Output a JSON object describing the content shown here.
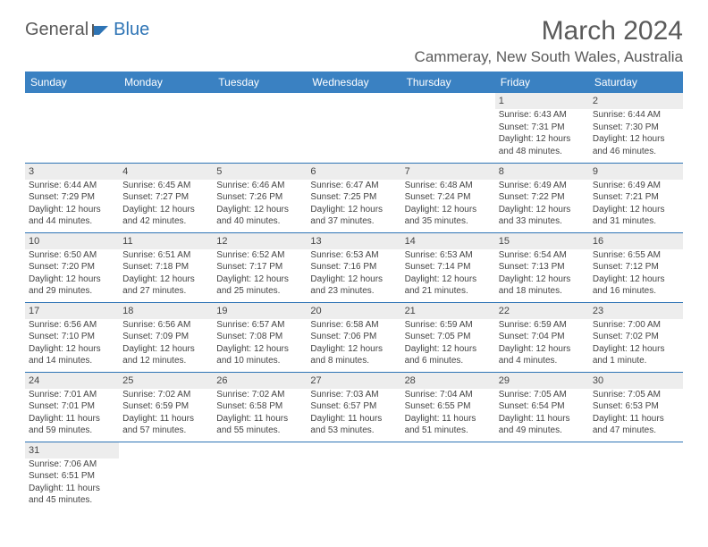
{
  "logo": {
    "general": "General",
    "blue": "Blue"
  },
  "title": "March 2024",
  "location": "Cammeray, New South Wales, Australia",
  "columns": [
    "Sunday",
    "Monday",
    "Tuesday",
    "Wednesday",
    "Thursday",
    "Friday",
    "Saturday"
  ],
  "colors": {
    "header_bg": "#3a81c2",
    "header_text": "#ffffff",
    "row_border": "#2e74b5",
    "shaded_bg": "#ededed",
    "body_text": "#444444"
  },
  "weeks": [
    [
      null,
      null,
      null,
      null,
      null,
      {
        "n": "1",
        "sr": "Sunrise: 6:43 AM",
        "ss": "Sunset: 7:31 PM",
        "d1": "Daylight: 12 hours",
        "d2": "and 48 minutes."
      },
      {
        "n": "2",
        "sr": "Sunrise: 6:44 AM",
        "ss": "Sunset: 7:30 PM",
        "d1": "Daylight: 12 hours",
        "d2": "and 46 minutes."
      }
    ],
    [
      {
        "n": "3",
        "sr": "Sunrise: 6:44 AM",
        "ss": "Sunset: 7:29 PM",
        "d1": "Daylight: 12 hours",
        "d2": "and 44 minutes."
      },
      {
        "n": "4",
        "sr": "Sunrise: 6:45 AM",
        "ss": "Sunset: 7:27 PM",
        "d1": "Daylight: 12 hours",
        "d2": "and 42 minutes."
      },
      {
        "n": "5",
        "sr": "Sunrise: 6:46 AM",
        "ss": "Sunset: 7:26 PM",
        "d1": "Daylight: 12 hours",
        "d2": "and 40 minutes."
      },
      {
        "n": "6",
        "sr": "Sunrise: 6:47 AM",
        "ss": "Sunset: 7:25 PM",
        "d1": "Daylight: 12 hours",
        "d2": "and 37 minutes."
      },
      {
        "n": "7",
        "sr": "Sunrise: 6:48 AM",
        "ss": "Sunset: 7:24 PM",
        "d1": "Daylight: 12 hours",
        "d2": "and 35 minutes."
      },
      {
        "n": "8",
        "sr": "Sunrise: 6:49 AM",
        "ss": "Sunset: 7:22 PM",
        "d1": "Daylight: 12 hours",
        "d2": "and 33 minutes."
      },
      {
        "n": "9",
        "sr": "Sunrise: 6:49 AM",
        "ss": "Sunset: 7:21 PM",
        "d1": "Daylight: 12 hours",
        "d2": "and 31 minutes."
      }
    ],
    [
      {
        "n": "10",
        "sr": "Sunrise: 6:50 AM",
        "ss": "Sunset: 7:20 PM",
        "d1": "Daylight: 12 hours",
        "d2": "and 29 minutes."
      },
      {
        "n": "11",
        "sr": "Sunrise: 6:51 AM",
        "ss": "Sunset: 7:18 PM",
        "d1": "Daylight: 12 hours",
        "d2": "and 27 minutes."
      },
      {
        "n": "12",
        "sr": "Sunrise: 6:52 AM",
        "ss": "Sunset: 7:17 PM",
        "d1": "Daylight: 12 hours",
        "d2": "and 25 minutes."
      },
      {
        "n": "13",
        "sr": "Sunrise: 6:53 AM",
        "ss": "Sunset: 7:16 PM",
        "d1": "Daylight: 12 hours",
        "d2": "and 23 minutes."
      },
      {
        "n": "14",
        "sr": "Sunrise: 6:53 AM",
        "ss": "Sunset: 7:14 PM",
        "d1": "Daylight: 12 hours",
        "d2": "and 21 minutes."
      },
      {
        "n": "15",
        "sr": "Sunrise: 6:54 AM",
        "ss": "Sunset: 7:13 PM",
        "d1": "Daylight: 12 hours",
        "d2": "and 18 minutes."
      },
      {
        "n": "16",
        "sr": "Sunrise: 6:55 AM",
        "ss": "Sunset: 7:12 PM",
        "d1": "Daylight: 12 hours",
        "d2": "and 16 minutes."
      }
    ],
    [
      {
        "n": "17",
        "sr": "Sunrise: 6:56 AM",
        "ss": "Sunset: 7:10 PM",
        "d1": "Daylight: 12 hours",
        "d2": "and 14 minutes."
      },
      {
        "n": "18",
        "sr": "Sunrise: 6:56 AM",
        "ss": "Sunset: 7:09 PM",
        "d1": "Daylight: 12 hours",
        "d2": "and 12 minutes."
      },
      {
        "n": "19",
        "sr": "Sunrise: 6:57 AM",
        "ss": "Sunset: 7:08 PM",
        "d1": "Daylight: 12 hours",
        "d2": "and 10 minutes."
      },
      {
        "n": "20",
        "sr": "Sunrise: 6:58 AM",
        "ss": "Sunset: 7:06 PM",
        "d1": "Daylight: 12 hours",
        "d2": "and 8 minutes."
      },
      {
        "n": "21",
        "sr": "Sunrise: 6:59 AM",
        "ss": "Sunset: 7:05 PM",
        "d1": "Daylight: 12 hours",
        "d2": "and 6 minutes."
      },
      {
        "n": "22",
        "sr": "Sunrise: 6:59 AM",
        "ss": "Sunset: 7:04 PM",
        "d1": "Daylight: 12 hours",
        "d2": "and 4 minutes."
      },
      {
        "n": "23",
        "sr": "Sunrise: 7:00 AM",
        "ss": "Sunset: 7:02 PM",
        "d1": "Daylight: 12 hours",
        "d2": "and 1 minute."
      }
    ],
    [
      {
        "n": "24",
        "sr": "Sunrise: 7:01 AM",
        "ss": "Sunset: 7:01 PM",
        "d1": "Daylight: 11 hours",
        "d2": "and 59 minutes."
      },
      {
        "n": "25",
        "sr": "Sunrise: 7:02 AM",
        "ss": "Sunset: 6:59 PM",
        "d1": "Daylight: 11 hours",
        "d2": "and 57 minutes."
      },
      {
        "n": "26",
        "sr": "Sunrise: 7:02 AM",
        "ss": "Sunset: 6:58 PM",
        "d1": "Daylight: 11 hours",
        "d2": "and 55 minutes."
      },
      {
        "n": "27",
        "sr": "Sunrise: 7:03 AM",
        "ss": "Sunset: 6:57 PM",
        "d1": "Daylight: 11 hours",
        "d2": "and 53 minutes."
      },
      {
        "n": "28",
        "sr": "Sunrise: 7:04 AM",
        "ss": "Sunset: 6:55 PM",
        "d1": "Daylight: 11 hours",
        "d2": "and 51 minutes."
      },
      {
        "n": "29",
        "sr": "Sunrise: 7:05 AM",
        "ss": "Sunset: 6:54 PM",
        "d1": "Daylight: 11 hours",
        "d2": "and 49 minutes."
      },
      {
        "n": "30",
        "sr": "Sunrise: 7:05 AM",
        "ss": "Sunset: 6:53 PM",
        "d1": "Daylight: 11 hours",
        "d2": "and 47 minutes."
      }
    ],
    [
      {
        "n": "31",
        "sr": "Sunrise: 7:06 AM",
        "ss": "Sunset: 6:51 PM",
        "d1": "Daylight: 11 hours",
        "d2": "and 45 minutes."
      },
      null,
      null,
      null,
      null,
      null,
      null
    ]
  ]
}
